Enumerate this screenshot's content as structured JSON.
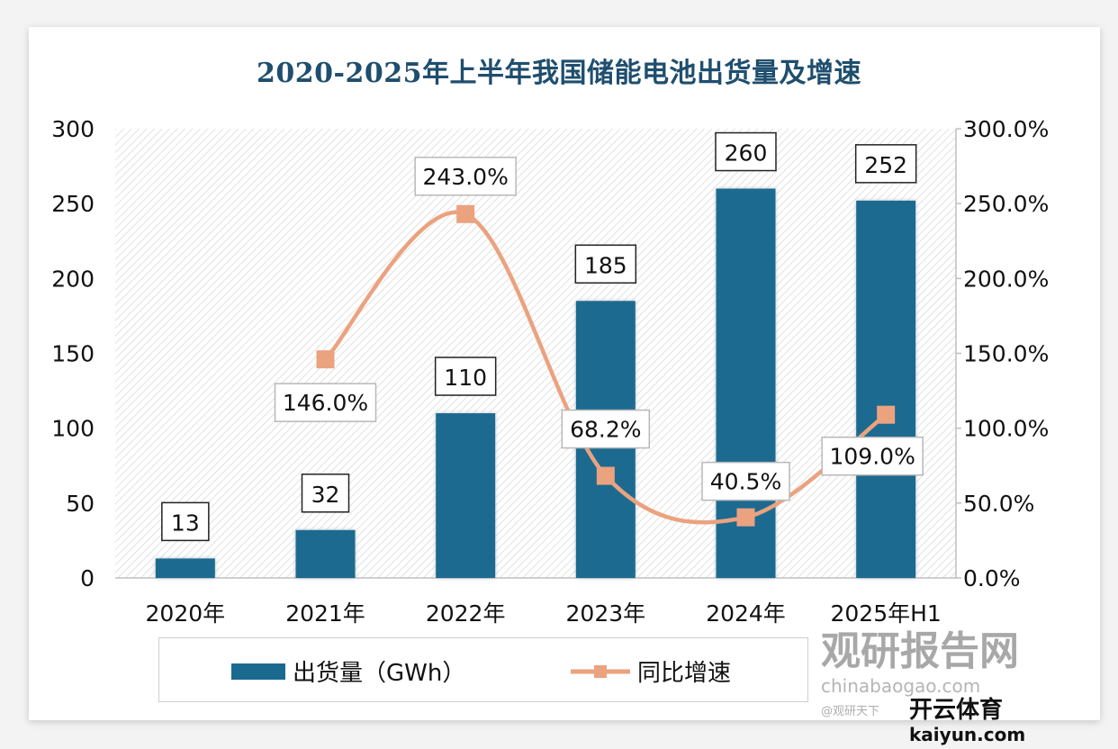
{
  "chart_data": {
    "type": "bar+line",
    "title": "2020-2025年上半年我国储能电池出货量及增速",
    "categories": [
      "2020年",
      "2021年",
      "2022年",
      "2023年",
      "2024年",
      "2025年H1"
    ],
    "series": [
      {
        "name": "出货量（GWh）",
        "type": "bar",
        "axis": "left",
        "color": "#1a6a90",
        "values": [
          13,
          32,
          110,
          185,
          260,
          252
        ],
        "labels": [
          "13",
          "32",
          "110",
          "185",
          "260",
          "252"
        ]
      },
      {
        "name": "同比增速",
        "type": "line",
        "axis": "right",
        "color": "#eba27f",
        "smooth": true,
        "marker": "square",
        "values": [
          null,
          146.0,
          243.0,
          68.2,
          40.5,
          109.0
        ],
        "labels": [
          "",
          "146.0%",
          "243.0%",
          "68.2%",
          "40.5%",
          "109.0%"
        ]
      }
    ],
    "ylim_left": [
      0,
      300
    ],
    "yticks_left": [
      "0",
      "50",
      "100",
      "150",
      "200",
      "250",
      "300"
    ],
    "ylim_right": [
      0,
      300
    ],
    "yticks_right": [
      "0.0%",
      "50.0%",
      "100.0%",
      "150.0%",
      "200.0%",
      "250.0%",
      "300.0%"
    ],
    "grid": false,
    "plot_background": "diagonal-hatch",
    "legend_position": "bottom"
  },
  "watermarks": {
    "site_name": "观研报告网",
    "site_url": "chinabaogao.com",
    "brand_name": "开云体育",
    "brand_url": "kaiyun.com",
    "handle": "@观研天下"
  }
}
